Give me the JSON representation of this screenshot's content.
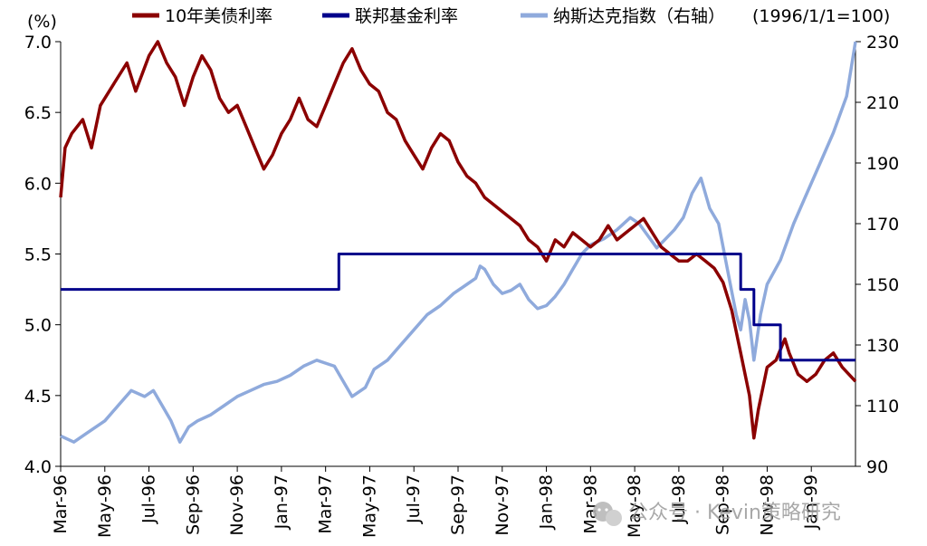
{
  "chart_data": {
    "type": "line",
    "left_axis_unit": "(%)",
    "right_axis_unit": "(1996/1/1=100)",
    "left_ylim": [
      4.0,
      7.0
    ],
    "left_yticks": [
      "4.0",
      "4.5",
      "5.0",
      "5.5",
      "6.0",
      "6.5",
      "7.0"
    ],
    "right_ylim": [
      90,
      230
    ],
    "right_yticks": [
      "90",
      "110",
      "130",
      "150",
      "170",
      "190",
      "210",
      "230"
    ],
    "x_ticks": [
      "Mar-96",
      "May-96",
      "Jul-96",
      "Sep-96",
      "Nov-96",
      "Jan-97",
      "Mar-97",
      "May-97",
      "Jul-97",
      "Sep-97",
      "Nov-97",
      "Jan-98",
      "Mar-98",
      "May-98",
      "Jul-98",
      "Sep-98",
      "Nov-98",
      "Jan-99"
    ],
    "grid": false,
    "legend_position": "top",
    "series": [
      {
        "name": "10年美债利率",
        "axis": "left",
        "color": "#8B0000",
        "points": [
          [
            0,
            5.9
          ],
          [
            0.1,
            6.25
          ],
          [
            0.25,
            6.35
          ],
          [
            0.5,
            6.45
          ],
          [
            0.7,
            6.25
          ],
          [
            0.9,
            6.55
          ],
          [
            1.2,
            6.7
          ],
          [
            1.5,
            6.85
          ],
          [
            1.7,
            6.65
          ],
          [
            2.0,
            6.9
          ],
          [
            2.2,
            7.0
          ],
          [
            2.4,
            6.85
          ],
          [
            2.6,
            6.75
          ],
          [
            2.8,
            6.55
          ],
          [
            3.0,
            6.75
          ],
          [
            3.2,
            6.9
          ],
          [
            3.4,
            6.8
          ],
          [
            3.6,
            6.6
          ],
          [
            3.8,
            6.5
          ],
          [
            4.0,
            6.55
          ],
          [
            4.2,
            6.4
          ],
          [
            4.4,
            6.25
          ],
          [
            4.6,
            6.1
          ],
          [
            4.8,
            6.2
          ],
          [
            5.0,
            6.35
          ],
          [
            5.2,
            6.45
          ],
          [
            5.4,
            6.6
          ],
          [
            5.6,
            6.45
          ],
          [
            5.8,
            6.4
          ],
          [
            6.0,
            6.55
          ],
          [
            6.2,
            6.7
          ],
          [
            6.4,
            6.85
          ],
          [
            6.6,
            6.95
          ],
          [
            6.8,
            6.8
          ],
          [
            7.0,
            6.7
          ],
          [
            7.2,
            6.65
          ],
          [
            7.4,
            6.5
          ],
          [
            7.6,
            6.45
          ],
          [
            7.8,
            6.3
          ],
          [
            8.0,
            6.2
          ],
          [
            8.2,
            6.1
          ],
          [
            8.4,
            6.25
          ],
          [
            8.6,
            6.35
          ],
          [
            8.8,
            6.3
          ],
          [
            9.0,
            6.15
          ],
          [
            9.2,
            6.05
          ],
          [
            9.4,
            6.0
          ],
          [
            9.6,
            5.9
          ],
          [
            9.8,
            5.85
          ],
          [
            10.0,
            5.8
          ],
          [
            10.2,
            5.75
          ],
          [
            10.4,
            5.7
          ],
          [
            10.6,
            5.6
          ],
          [
            10.8,
            5.55
          ],
          [
            11.0,
            5.45
          ],
          [
            11.2,
            5.6
          ],
          [
            11.4,
            5.55
          ],
          [
            11.6,
            5.65
          ],
          [
            11.8,
            5.6
          ],
          [
            12.0,
            5.55
          ],
          [
            12.2,
            5.6
          ],
          [
            12.4,
            5.7
          ],
          [
            12.6,
            5.6
          ],
          [
            12.8,
            5.65
          ],
          [
            13.0,
            5.7
          ],
          [
            13.2,
            5.75
          ],
          [
            13.4,
            5.65
          ],
          [
            13.6,
            5.55
          ],
          [
            13.8,
            5.5
          ],
          [
            14.0,
            5.45
          ],
          [
            14.2,
            5.45
          ],
          [
            14.4,
            5.5
          ],
          [
            14.6,
            5.45
          ],
          [
            14.8,
            5.4
          ],
          [
            15.0,
            5.3
          ],
          [
            15.2,
            5.1
          ],
          [
            15.4,
            4.8
          ],
          [
            15.6,
            4.5
          ],
          [
            15.7,
            4.2
          ],
          [
            15.8,
            4.4
          ],
          [
            16.0,
            4.7
          ],
          [
            16.2,
            4.75
          ],
          [
            16.4,
            4.9
          ],
          [
            16.5,
            4.8
          ],
          [
            16.7,
            4.65
          ],
          [
            16.9,
            4.6
          ],
          [
            17.1,
            4.65
          ],
          [
            17.3,
            4.75
          ],
          [
            17.5,
            4.8
          ],
          [
            17.7,
            4.7
          ],
          [
            18.0,
            4.6
          ]
        ]
      },
      {
        "name": "联邦基金利率",
        "axis": "left",
        "color": "#00008B",
        "points": [
          [
            0,
            5.25
          ],
          [
            6.3,
            5.25
          ],
          [
            6.3,
            5.5
          ],
          [
            15.4,
            5.5
          ],
          [
            15.4,
            5.25
          ],
          [
            15.7,
            5.25
          ],
          [
            15.7,
            5.0
          ],
          [
            16.3,
            5.0
          ],
          [
            16.3,
            4.75
          ],
          [
            18.0,
            4.75
          ]
        ]
      },
      {
        "name": "纳斯达克指数（右轴）",
        "axis": "right",
        "color": "#8FAADC",
        "points": [
          [
            0,
            100
          ],
          [
            0.3,
            98
          ],
          [
            0.6,
            101
          ],
          [
            1.0,
            105
          ],
          [
            1.3,
            110
          ],
          [
            1.6,
            115
          ],
          [
            1.9,
            113
          ],
          [
            2.1,
            115
          ],
          [
            2.3,
            110
          ],
          [
            2.5,
            105
          ],
          [
            2.7,
            98
          ],
          [
            2.9,
            103
          ],
          [
            3.1,
            105
          ],
          [
            3.4,
            107
          ],
          [
            3.7,
            110
          ],
          [
            4.0,
            113
          ],
          [
            4.3,
            115
          ],
          [
            4.6,
            117
          ],
          [
            4.9,
            118
          ],
          [
            5.2,
            120
          ],
          [
            5.5,
            123
          ],
          [
            5.8,
            125
          ],
          [
            6.0,
            124
          ],
          [
            6.2,
            123
          ],
          [
            6.4,
            118
          ],
          [
            6.6,
            113
          ],
          [
            6.9,
            116
          ],
          [
            7.1,
            122
          ],
          [
            7.4,
            125
          ],
          [
            7.7,
            130
          ],
          [
            8.0,
            135
          ],
          [
            8.3,
            140
          ],
          [
            8.6,
            143
          ],
          [
            8.9,
            147
          ],
          [
            9.2,
            150
          ],
          [
            9.4,
            152
          ],
          [
            9.5,
            156
          ],
          [
            9.6,
            155
          ],
          [
            9.8,
            150
          ],
          [
            10.0,
            147
          ],
          [
            10.2,
            148
          ],
          [
            10.4,
            150
          ],
          [
            10.6,
            145
          ],
          [
            10.8,
            142
          ],
          [
            11.0,
            143
          ],
          [
            11.2,
            146
          ],
          [
            11.4,
            150
          ],
          [
            11.6,
            155
          ],
          [
            11.8,
            160
          ],
          [
            12.0,
            163
          ],
          [
            12.3,
            165
          ],
          [
            12.6,
            168
          ],
          [
            12.9,
            172
          ],
          [
            13.1,
            170
          ],
          [
            13.3,
            166
          ],
          [
            13.5,
            162
          ],
          [
            13.7,
            165
          ],
          [
            13.9,
            168
          ],
          [
            14.1,
            172
          ],
          [
            14.3,
            180
          ],
          [
            14.5,
            185
          ],
          [
            14.7,
            175
          ],
          [
            14.9,
            170
          ],
          [
            15.1,
            155
          ],
          [
            15.3,
            140
          ],
          [
            15.4,
            135
          ],
          [
            15.5,
            145
          ],
          [
            15.6,
            138
          ],
          [
            15.7,
            125
          ],
          [
            15.85,
            140
          ],
          [
            16.0,
            150
          ],
          [
            16.3,
            158
          ],
          [
            16.6,
            170
          ],
          [
            16.9,
            180
          ],
          [
            17.2,
            190
          ],
          [
            17.5,
            200
          ],
          [
            17.8,
            212
          ],
          [
            18.0,
            230
          ]
        ]
      }
    ]
  },
  "legend": {
    "items": [
      {
        "label": "10年美债利率",
        "color": "#8B0000"
      },
      {
        "label": "联邦基金利率",
        "color": "#00008B"
      },
      {
        "label": "纳斯达克指数（右轴）",
        "color": "#8FAADC"
      }
    ]
  },
  "watermark": {
    "text": "公众号 · Kevin策略研究",
    "icon": "wechat-icon"
  }
}
